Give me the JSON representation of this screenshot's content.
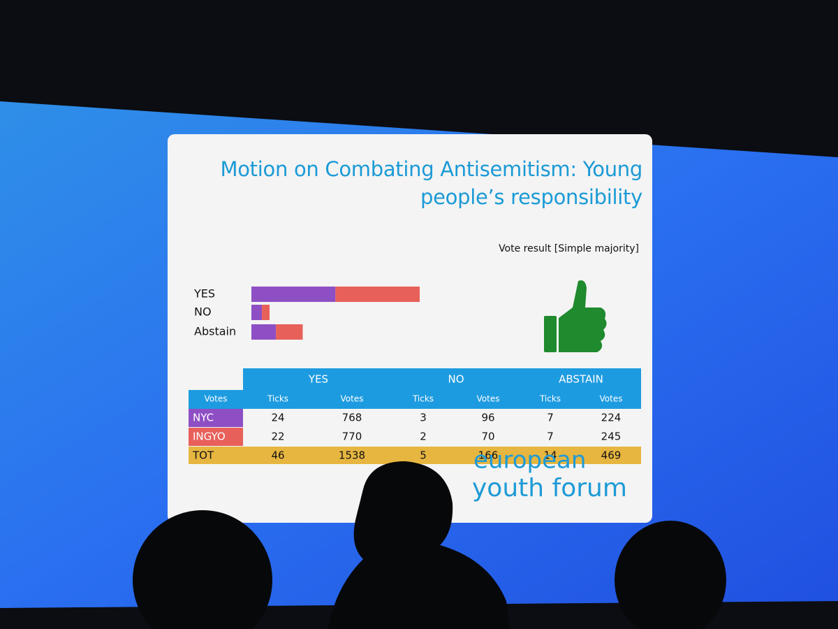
{
  "title": "Motion on Combating Antisemitism: Young people’s responsibility",
  "subtitle": "Vote result [Simple majority]",
  "chart_data": {
    "type": "stacked-bar-horizontal",
    "categories": [
      "YES",
      "NO",
      "Abstain"
    ],
    "series": [
      {
        "name": "NYC",
        "color": "#8e4fc4",
        "values": [
          768,
          96,
          224
        ]
      },
      {
        "name": "INGYO",
        "color": "#e8605a",
        "values": [
          770,
          70,
          245
        ]
      }
    ]
  },
  "table": {
    "corner": "Votes",
    "groups": [
      "YES",
      "NO",
      "ABSTAIN"
    ],
    "subheaders": [
      "Ticks",
      "Votes",
      "Ticks",
      "Votes",
      "Ticks",
      "Votes"
    ],
    "ticks": [
      [
        24,
        3,
        7
      ],
      [
        22,
        2,
        7
      ]
    ],
    "total": {
      "label": "TOT",
      "values": [
        46,
        1538,
        5,
        166,
        14,
        469
      ]
    }
  },
  "logo": [
    "european",
    "youth forum"
  ]
}
